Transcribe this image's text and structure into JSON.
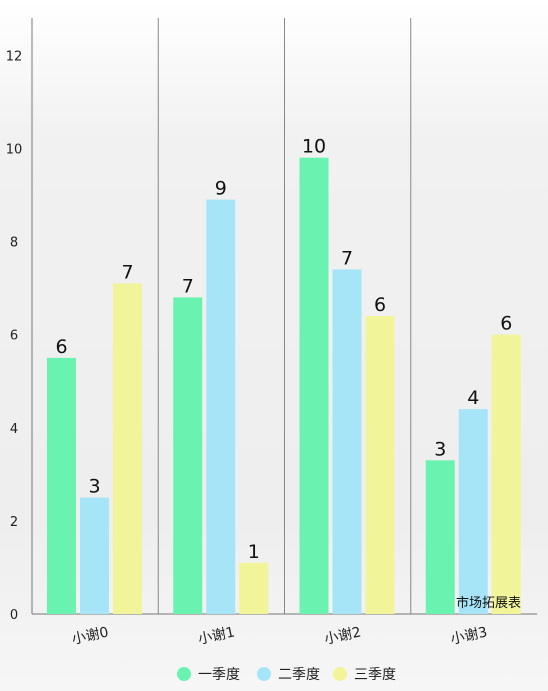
{
  "chart_data": {
    "type": "bar",
    "categories": [
      "小谢0",
      "小谢1",
      "小谢2",
      "小谢3"
    ],
    "series": [
      {
        "name": "一季度",
        "values": [
          5.5,
          6.8,
          9.8,
          3.3
        ],
        "labels": [
          "6",
          "7",
          "10",
          "3"
        ]
      },
      {
        "name": "二季度",
        "values": [
          2.5,
          8.9,
          7.4,
          4.4
        ],
        "labels": [
          "3",
          "9",
          "7",
          "4"
        ]
      },
      {
        "name": "三季度",
        "values": [
          7.1,
          1.1,
          6.4,
          6.0
        ],
        "labels": [
          "7",
          "1",
          "6",
          "6"
        ]
      }
    ],
    "ylim": [
      0,
      12.8
    ],
    "yticks": [
      "0",
      "2",
      "4",
      "6",
      "8",
      "10",
      "12"
    ],
    "description": "市场拓展表",
    "grid": "vertical lines between categories",
    "legend_position": "bottom-center"
  },
  "colors": {
    "series": [
      "#69f2b0",
      "#a6e5f8",
      "#f1f499"
    ],
    "axis": "#777777",
    "grid": "#888888"
  }
}
